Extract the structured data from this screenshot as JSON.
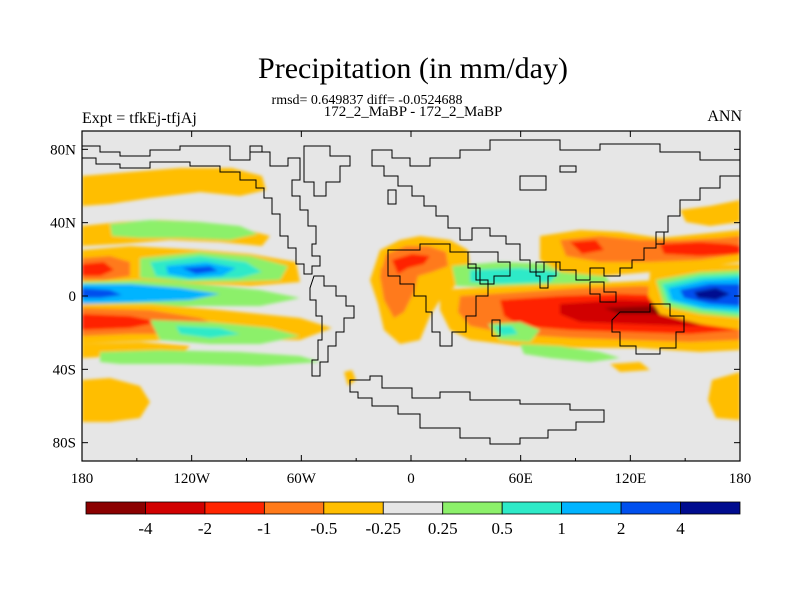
{
  "map": {
    "title": "Precipitation (in mm/day)",
    "stats_line": "rmsd= 0.649837 diff= -0.0524688",
    "case_line": "172_2_MaBP - 172_2_MaBP",
    "expt_label": "Expt = tfkEj-tfjAj",
    "season_label": "ANN",
    "lat_ticks": [
      "80N",
      "40N",
      "0",
      "40S",
      "80S"
    ],
    "lon_ticks": [
      "180",
      "120W",
      "60W",
      "0",
      "60E",
      "120E",
      "180"
    ]
  },
  "colorbar": {
    "labels": [
      "-4",
      "-2",
      "-1",
      "-0.5",
      "-0.25",
      "0.25",
      "0.5",
      "1",
      "2",
      "4"
    ],
    "colors": [
      "#8b0000",
      "#d10000",
      "#ff2400",
      "#ff7a1a",
      "#ffbe00",
      "#e6e6e6",
      "#8cf06a",
      "#2eeac8",
      "#00b4ff",
      "#0050ee",
      "#000c8f"
    ]
  }
}
